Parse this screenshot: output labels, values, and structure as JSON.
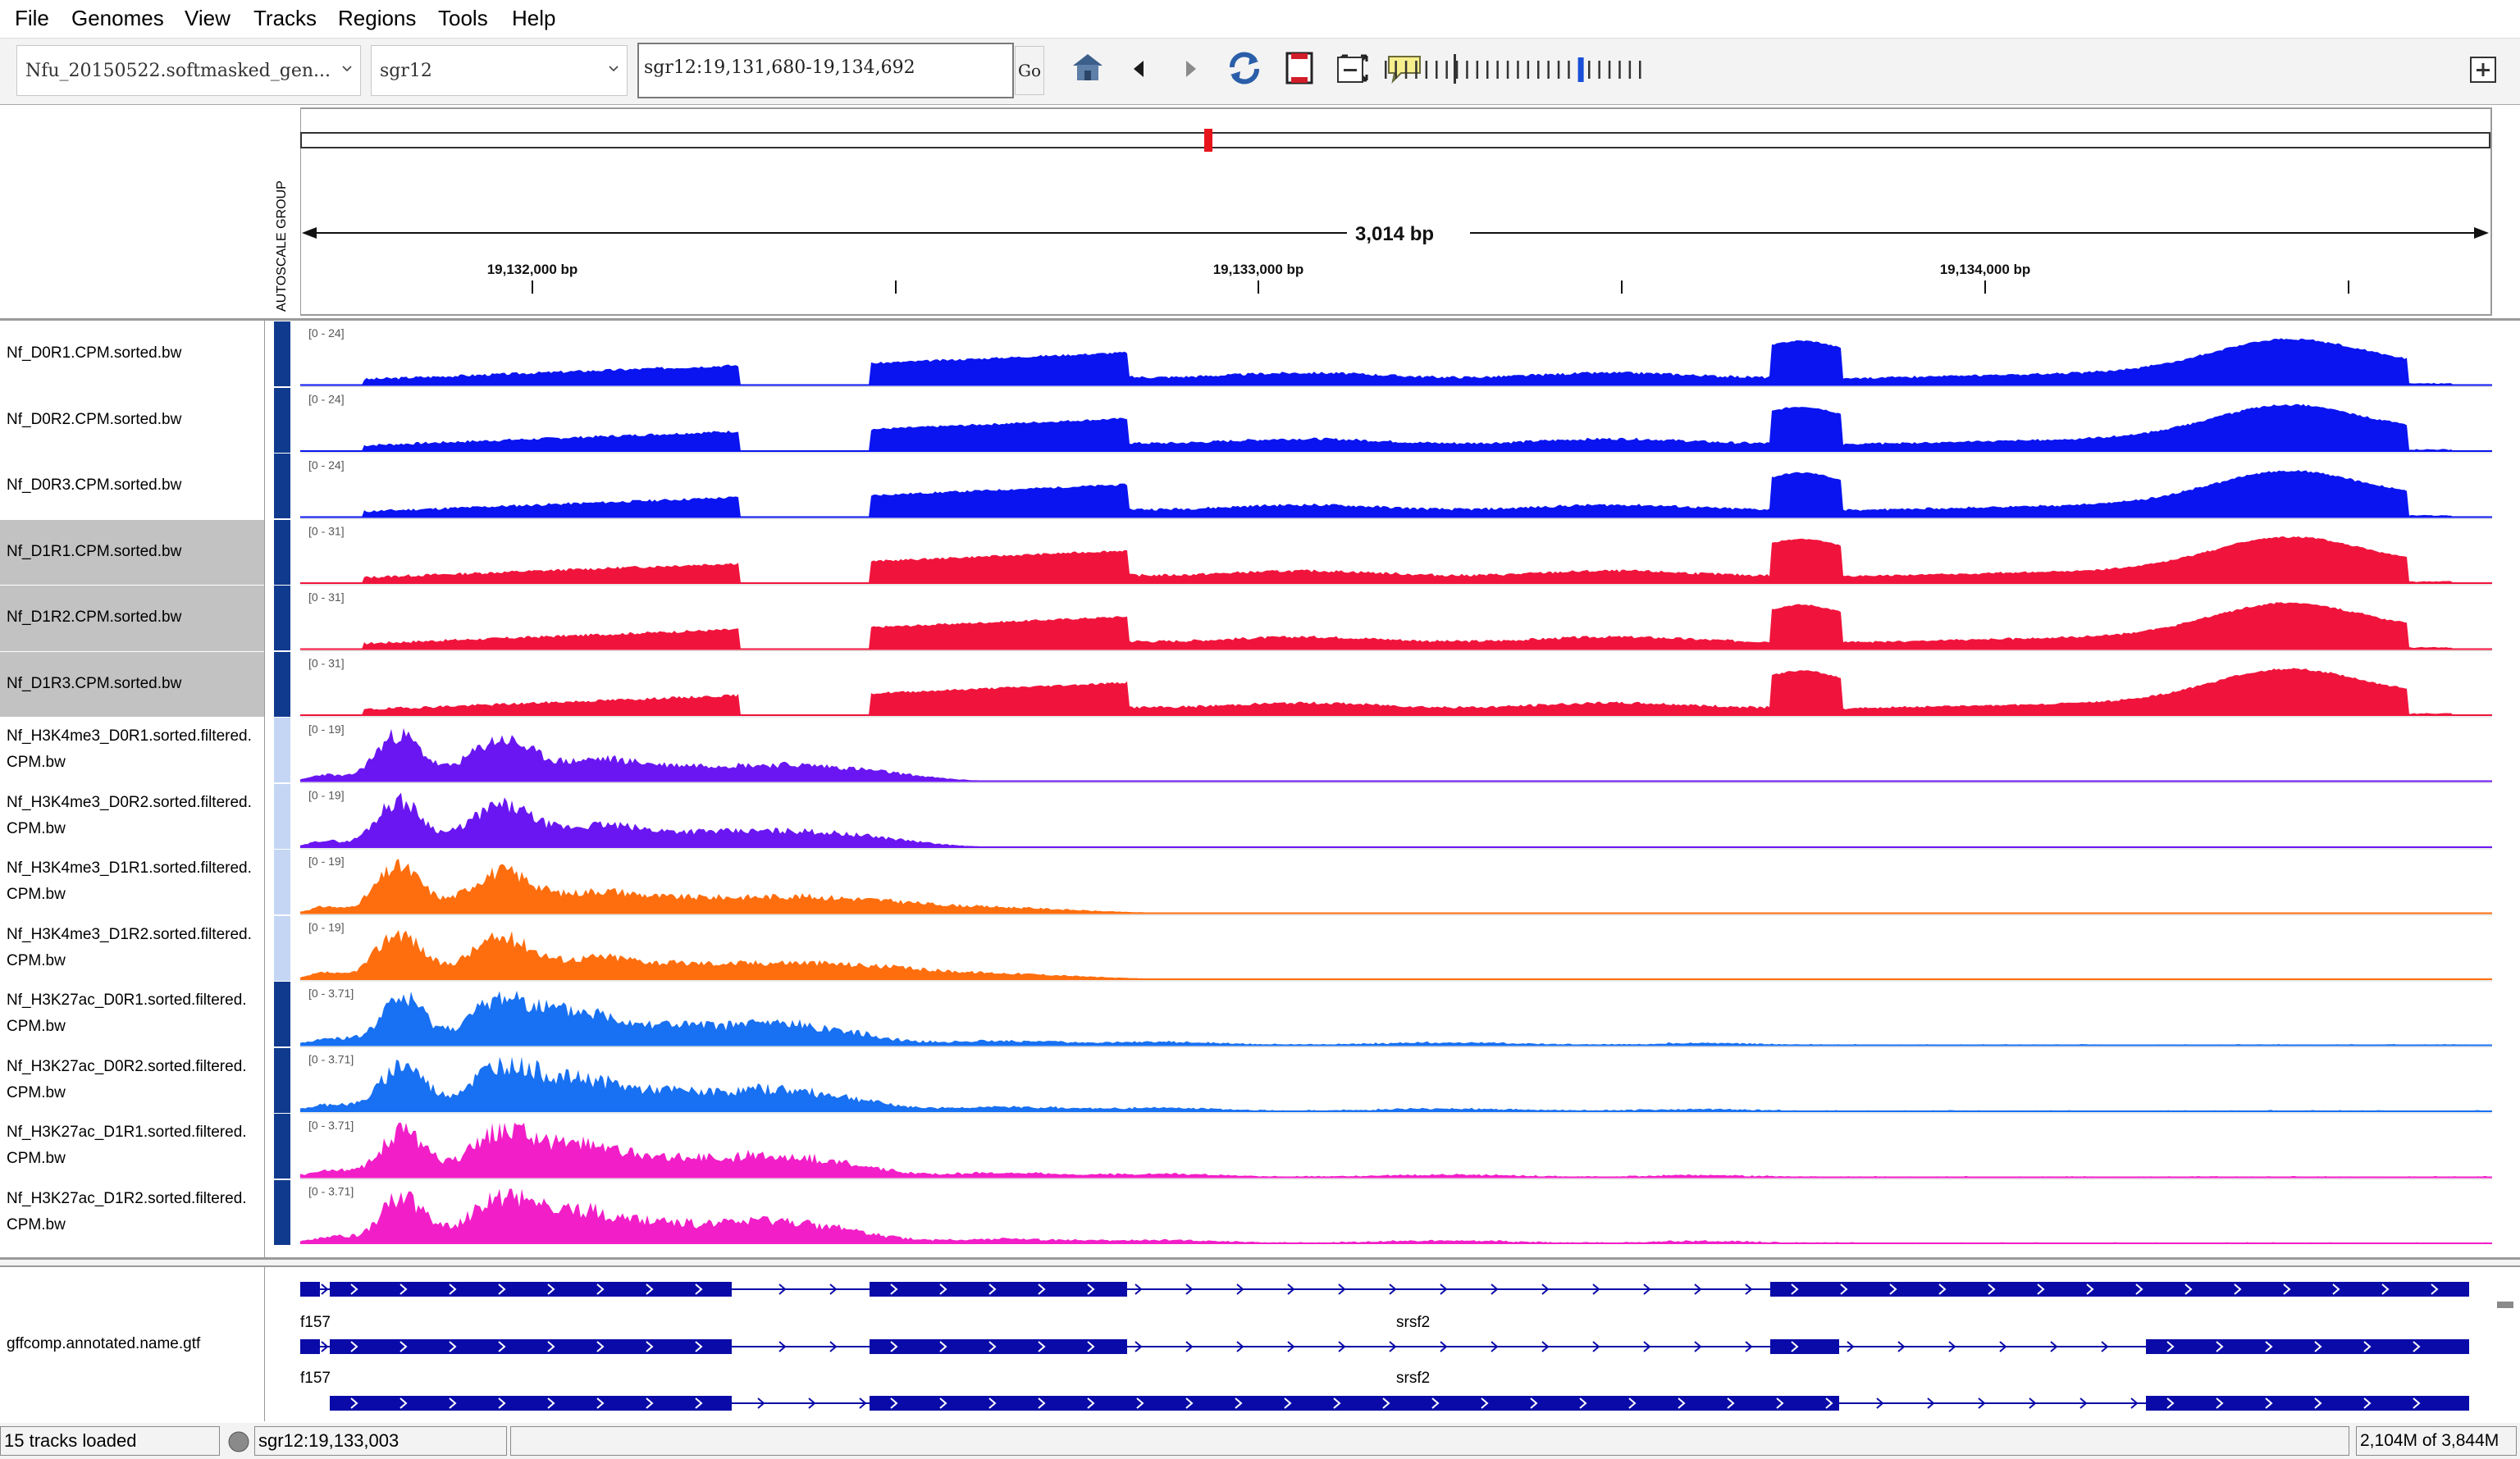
{
  "menu": [
    "File",
    "Genomes",
    "View",
    "Tracks",
    "Regions",
    "Tools",
    "Help"
  ],
  "toolbar": {
    "genome": "Nfu_20150522.softmasked_gen...",
    "chromosome": "sgr12",
    "locus": "sgr12:19,131,680-19,134,692",
    "go_label": "Go"
  },
  "ruler": {
    "span_label": "3,014 bp",
    "ticks": [
      "19,132,000 bp",
      "19,133,000 bp",
      "19,134,000 bp"
    ],
    "autoscale_label": "AUTOSCALE GROUP"
  },
  "colors": {
    "d0": "#0a14f0",
    "d1": "#f0143c",
    "h3k4_d0": "#6a16f2",
    "h3k4_d1": "#ff6e0e",
    "h3k27_d0": "#1870f2",
    "h3k27_d1": "#f21ec8",
    "feature": "#0a0aa8",
    "attr_dark": "#103a8e",
    "attr_light": "#c4d6f4",
    "selected_row": "#c2c2c2"
  },
  "tracks": [
    {
      "name": [
        "Nf_D0R1.CPM.sorted.bw"
      ],
      "range": "[0 - 24]",
      "kind": "rna",
      "color": "d0",
      "seed": 3,
      "selected": false,
      "attr": "attr_dark"
    },
    {
      "name": [
        "Nf_D0R2.CPM.sorted.bw"
      ],
      "range": "[0 - 24]",
      "kind": "rna",
      "color": "d0",
      "seed": 7,
      "selected": false,
      "attr": "attr_dark"
    },
    {
      "name": [
        "Nf_D0R3.CPM.sorted.bw"
      ],
      "range": "[0 - 24]",
      "kind": "rna",
      "color": "d0",
      "seed": 11,
      "selected": false,
      "attr": "attr_dark"
    },
    {
      "name": [
        "Nf_D1R1.CPM.sorted.bw"
      ],
      "range": "[0 - 31]",
      "kind": "rna",
      "color": "d1",
      "seed": 13,
      "selected": true,
      "attr": "attr_dark"
    },
    {
      "name": [
        "Nf_D1R2.CPM.sorted.bw"
      ],
      "range": "[0 - 31]",
      "kind": "rna",
      "color": "d1",
      "seed": 17,
      "selected": true,
      "attr": "attr_dark"
    },
    {
      "name": [
        "Nf_D1R3.CPM.sorted.bw"
      ],
      "range": "[0 - 31]",
      "kind": "rna",
      "color": "d1",
      "seed": 19,
      "selected": true,
      "attr": "attr_dark"
    },
    {
      "name": [
        "Nf_H3K4me3_D0R1.sorted.filtered.",
        "CPM.bw"
      ],
      "range": "[0 - 19]",
      "kind": "k4",
      "color": "h3k4_d0",
      "seed": 23,
      "selected": false,
      "attr": "attr_light"
    },
    {
      "name": [
        "Nf_H3K4me3_D0R2.sorted.filtered.",
        "CPM.bw"
      ],
      "range": "[0 - 19]",
      "kind": "k4",
      "color": "h3k4_d0",
      "seed": 29,
      "selected": false,
      "attr": "attr_light"
    },
    {
      "name": [
        "Nf_H3K4me3_D1R1.sorted.filtered.",
        "CPM.bw"
      ],
      "range": "[0 - 19]",
      "kind": "k4b",
      "color": "h3k4_d1",
      "seed": 31,
      "selected": false,
      "attr": "attr_light"
    },
    {
      "name": [
        "Nf_H3K4me3_D1R2.sorted.filtered.",
        "CPM.bw"
      ],
      "range": "[0 - 19]",
      "kind": "k4b",
      "color": "h3k4_d1",
      "seed": 37,
      "selected": false,
      "attr": "attr_light"
    },
    {
      "name": [
        "Nf_H3K27ac_D0R1.sorted.filtered.",
        "CPM.bw"
      ],
      "range": "[0 - 3.71]",
      "kind": "k27",
      "color": "h3k27_d0",
      "seed": 41,
      "selected": false,
      "attr": "attr_dark"
    },
    {
      "name": [
        "Nf_H3K27ac_D0R2.sorted.filtered.",
        "CPM.bw"
      ],
      "range": "[0 - 3.71]",
      "kind": "k27",
      "color": "h3k27_d0",
      "seed": 43,
      "selected": false,
      "attr": "attr_dark"
    },
    {
      "name": [
        "Nf_H3K27ac_D1R1.sorted.filtered.",
        "CPM.bw"
      ],
      "range": "[0 - 3.71]",
      "kind": "k27",
      "color": "h3k27_d1",
      "seed": 47,
      "selected": false,
      "attr": "attr_dark"
    },
    {
      "name": [
        "Nf_H3K27ac_D1R2.sorted.filtered.",
        "CPM.bw"
      ],
      "range": "[0 - 3.71]",
      "kind": "k27",
      "color": "h3k27_d1",
      "seed": 53,
      "selected": false,
      "attr": "attr_dark"
    }
  ],
  "feature_track": {
    "name": "gffcomp.annotated.name.gtf",
    "left_label": "f157",
    "gene_label": "srsf2"
  },
  "status": {
    "tracks_loaded": "15 tracks loaded",
    "position": "sgr12:19,133,003",
    "memory": "2,104M of 3,844M"
  }
}
